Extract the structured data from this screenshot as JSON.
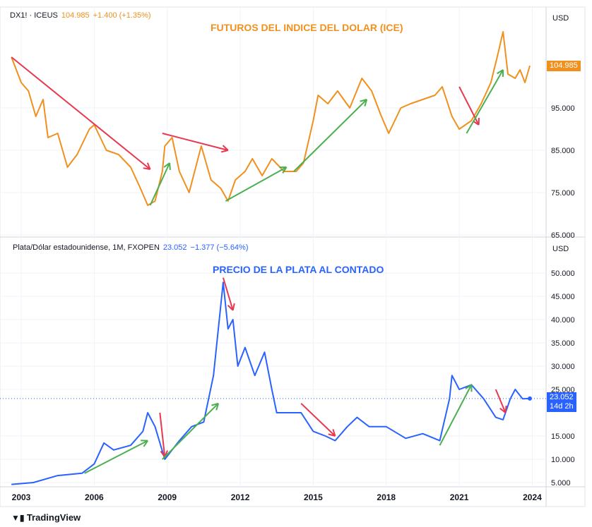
{
  "panels": [
    {
      "symbol": "DX1! · ICEUS",
      "last": "104.985",
      "change": "+1.400 (+1.35%)",
      "title": "FUTUROS DEL INDICE DEL DOLAR (ICE)",
      "currency": "USD",
      "badge": "104.985"
    },
    {
      "symbol": "Plata/Dólar estadounidense, 1M, FXOPEN",
      "last": "23.052",
      "change": "−1.377 (−5.64%)",
      "title": "PRECIO DE LA PLATA AL CONTADO",
      "currency": "USD",
      "badge": "23.052",
      "badge_sub": "14d 2h"
    }
  ],
  "footer": {
    "brand": "TradingView"
  },
  "chart_data": [
    {
      "type": "line",
      "title": "FUTUROS DEL INDICE DEL DOLAR (ICE)",
      "color": "#f0901e",
      "ylim": [
        65,
        115
      ],
      "yticks": [
        "95.000",
        "85.000",
        "75.000",
        "65.000"
      ],
      "x": [
        2002.6,
        2003.0,
        2003.3,
        2003.6,
        2003.9,
        2004.1,
        2004.5,
        2004.9,
        2005.3,
        2005.8,
        2006.0,
        2006.5,
        2007.0,
        2007.5,
        2007.9,
        2008.2,
        2008.5,
        2008.8,
        2008.9,
        2009.2,
        2009.5,
        2009.9,
        2010.4,
        2010.8,
        2011.2,
        2011.5,
        2011.8,
        2012.2,
        2012.5,
        2012.9,
        2013.3,
        2013.8,
        2014.3,
        2014.6,
        2015.0,
        2015.2,
        2015.6,
        2016.0,
        2016.5,
        2017.0,
        2017.4,
        2017.8,
        2018.1,
        2018.6,
        2019.0,
        2019.5,
        2020.0,
        2020.3,
        2020.7,
        2021.0,
        2021.5,
        2021.9,
        2022.3,
        2022.6,
        2022.8,
        2023.0,
        2023.3,
        2023.5,
        2023.7,
        2023.9
      ],
      "y": [
        107,
        101,
        99,
        93,
        97,
        88,
        89,
        81,
        84,
        90,
        91,
        85,
        84,
        81,
        76,
        72,
        73,
        80,
        86,
        88,
        80,
        75,
        86,
        78,
        76,
        73,
        78,
        80,
        83,
        79,
        83,
        80,
        80,
        82,
        92,
        98,
        96,
        99,
        95,
        102,
        99,
        93,
        89,
        95,
        96,
        97,
        98,
        100,
        93,
        90,
        92,
        96,
        101,
        108,
        113,
        103,
        102,
        104,
        101,
        104.985
      ],
      "arrows": [
        {
          "color": "red",
          "from": [
            2002.6,
            107
          ],
          "to": [
            2008.3,
            80.5
          ]
        },
        {
          "color": "green",
          "from": [
            2008.3,
            72
          ],
          "to": [
            2009.1,
            82
          ]
        },
        {
          "color": "red",
          "from": [
            2008.8,
            89
          ],
          "to": [
            2011.5,
            85
          ]
        },
        {
          "color": "green",
          "from": [
            2011.4,
            73
          ],
          "to": [
            2013.9,
            81
          ]
        },
        {
          "color": "green",
          "from": [
            2014.2,
            80
          ],
          "to": [
            2017.2,
            97
          ]
        },
        {
          "color": "red",
          "from": [
            2021.0,
            100
          ],
          "to": [
            2021.8,
            91
          ]
        },
        {
          "color": "green",
          "from": [
            2021.3,
            89
          ],
          "to": [
            2022.8,
            104
          ]
        }
      ]
    },
    {
      "type": "line",
      "title": "PRECIO DE LA PLATA AL CONTADO",
      "color": "#2962ff",
      "ylim": [
        3,
        52
      ],
      "yticks": [
        "50.000",
        "45.000",
        "40.000",
        "35.000",
        "30.000",
        "25.000",
        "15.000",
        "10.000",
        "5.000"
      ],
      "x": [
        2002.6,
        2003.5,
        2004.5,
        2005.5,
        2006.0,
        2006.4,
        2006.8,
        2007.5,
        2008.0,
        2008.2,
        2008.5,
        2008.9,
        2009.5,
        2010.0,
        2010.5,
        2010.9,
        2011.3,
        2011.5,
        2011.7,
        2011.9,
        2012.2,
        2012.6,
        2013.0,
        2013.3,
        2013.5,
        2014.0,
        2014.5,
        2015.0,
        2015.5,
        2015.9,
        2016.4,
        2016.8,
        2017.3,
        2018.0,
        2018.8,
        2019.5,
        2020.2,
        2020.6,
        2020.7,
        2021.0,
        2021.5,
        2022.0,
        2022.5,
        2022.8,
        2023.1,
        2023.3,
        2023.6,
        2023.9
      ],
      "y": [
        4.6,
        5,
        6.5,
        7,
        9,
        13.5,
        12,
        13,
        16,
        20,
        17,
        10,
        14,
        17,
        18,
        28,
        48,
        38,
        40,
        30,
        34,
        28,
        33,
        25,
        20,
        20,
        20,
        16,
        15,
        14,
        17,
        19,
        17,
        17,
        14.5,
        15.5,
        14,
        23,
        28,
        25,
        26,
        23,
        19,
        18.5,
        23,
        25,
        23,
        23.052
      ],
      "arrows": [
        {
          "color": "green",
          "from": [
            2005.6,
            7
          ],
          "to": [
            2008.2,
            14
          ]
        },
        {
          "color": "red",
          "from": [
            2008.7,
            20
          ],
          "to": [
            2008.9,
            10.5
          ]
        },
        {
          "color": "green",
          "from": [
            2008.8,
            10
          ],
          "to": [
            2011.1,
            22
          ]
        },
        {
          "color": "red",
          "from": [
            2011.3,
            49
          ],
          "to": [
            2011.7,
            42
          ]
        },
        {
          "color": "red",
          "from": [
            2014.5,
            22
          ],
          "to": [
            2015.9,
            15
          ]
        },
        {
          "color": "green",
          "from": [
            2020.2,
            13
          ],
          "to": [
            2021.5,
            26
          ]
        },
        {
          "color": "red",
          "from": [
            2022.5,
            25
          ],
          "to": [
            2022.9,
            20
          ]
        }
      ]
    }
  ],
  "xticks": [
    "2003",
    "2006",
    "2009",
    "2012",
    "2015",
    "2018",
    "2021",
    "2024"
  ]
}
